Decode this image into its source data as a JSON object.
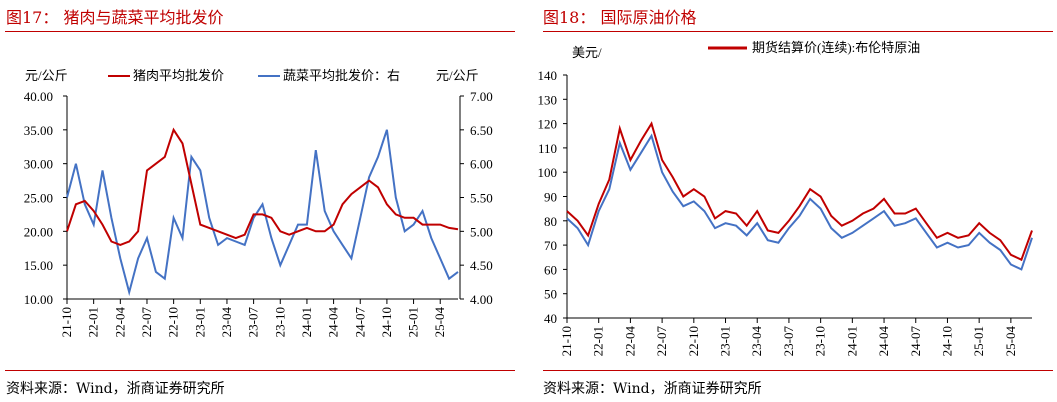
{
  "left": {
    "title": "图17： 猪肉与蔬菜平均批发价",
    "source": "资料来源：Wind，浙商证券研究所"
  },
  "right": {
    "title": "图18： 国际原油价格",
    "source": "资料来源：Wind，浙商证券研究所"
  },
  "chart_data": [
    {
      "type": "line",
      "yunit_left": "元/公斤",
      "yunit_right": "元/公斤",
      "ylim_left": [
        10,
        40
      ],
      "ylim_right": [
        4,
        7
      ],
      "yticks_left": [
        "10.00",
        "15.00",
        "20.00",
        "25.00",
        "30.00",
        "35.00",
        "40.00"
      ],
      "yticks_right": [
        "4.00",
        "4.50",
        "5.00",
        "5.50",
        "6.00",
        "6.50",
        "7.00"
      ],
      "xticks": [
        "21-10",
        "22-01",
        "22-04",
        "22-07",
        "22-10",
        "23-01",
        "23-04",
        "23-07",
        "23-10",
        "24-01",
        "24-04",
        "24-07",
        "24-10",
        "25-01",
        "25-04"
      ],
      "legend": "top",
      "x": [
        "21-10",
        "21-11",
        "21-12",
        "22-01",
        "22-02",
        "22-03",
        "22-04",
        "22-05",
        "22-06",
        "22-07",
        "22-08",
        "22-09",
        "22-10",
        "22-11",
        "22-12",
        "23-01",
        "23-02",
        "23-03",
        "23-04",
        "23-05",
        "23-06",
        "23-07",
        "23-08",
        "23-09",
        "23-10",
        "23-11",
        "23-12",
        "24-01",
        "24-02",
        "24-03",
        "24-04",
        "24-05",
        "24-06",
        "24-07",
        "24-08",
        "24-09",
        "24-10",
        "24-11",
        "24-12",
        "25-01",
        "25-02",
        "25-03",
        "25-04",
        "25-05",
        "25-06"
      ],
      "series": [
        {
          "name": "猪肉平均批发价",
          "axis": "left",
          "color": "#c00000",
          "values": [
            20,
            24,
            24.5,
            23,
            21,
            18.5,
            18,
            18.5,
            20,
            29,
            30,
            31,
            35,
            33,
            27,
            21,
            20.5,
            20,
            19.5,
            19,
            19.5,
            22.5,
            22.5,
            22,
            20,
            19.5,
            20,
            20.5,
            20,
            20,
            21,
            24,
            25.5,
            26.5,
            27.5,
            26.5,
            24,
            22.5,
            22,
            22,
            21,
            21,
            21,
            20.5,
            20.3
          ]
        },
        {
          "name": "蔬菜平均批发价：右",
          "axis": "right",
          "color": "#4472c4",
          "values": [
            5.5,
            6.0,
            5.4,
            5.1,
            5.9,
            5.2,
            4.6,
            4.1,
            4.6,
            4.9,
            4.4,
            4.3,
            5.2,
            4.9,
            6.1,
            5.9,
            5.2,
            4.8,
            4.9,
            4.85,
            4.8,
            5.2,
            5.4,
            4.9,
            4.5,
            4.8,
            5.1,
            5.1,
            6.2,
            5.3,
            5.0,
            4.8,
            4.6,
            5.2,
            5.8,
            6.1,
            6.5,
            5.5,
            5.0,
            5.1,
            5.3,
            4.9,
            4.6,
            4.3,
            4.4
          ]
        }
      ]
    },
    {
      "type": "line",
      "yunit": "美元/",
      "ylim": [
        40,
        140
      ],
      "yticks": [
        "40",
        "50",
        "60",
        "70",
        "80",
        "90",
        "100",
        "110",
        "120",
        "130",
        "140"
      ],
      "xticks": [
        "21-10",
        "22-01",
        "22-04",
        "22-07",
        "22-10",
        "23-01",
        "23-04",
        "23-07",
        "23-10",
        "24-01",
        "24-04",
        "24-07",
        "24-10",
        "25-01",
        "25-04"
      ],
      "legend": "top",
      "x": [
        "21-10",
        "21-11",
        "21-12",
        "22-01",
        "22-02",
        "22-03",
        "22-04",
        "22-05",
        "22-06",
        "22-07",
        "22-08",
        "22-09",
        "22-10",
        "22-11",
        "22-12",
        "23-01",
        "23-02",
        "23-03",
        "23-04",
        "23-05",
        "23-06",
        "23-07",
        "23-08",
        "23-09",
        "23-10",
        "23-11",
        "23-12",
        "24-01",
        "24-02",
        "24-03",
        "24-04",
        "24-05",
        "24-06",
        "24-07",
        "24-08",
        "24-09",
        "24-10",
        "24-11",
        "24-12",
        "25-01",
        "25-02",
        "25-03",
        "25-04",
        "25-05",
        "25-06"
      ],
      "series": [
        {
          "name": "期货结算价(连续):布伦特原油",
          "color": "#c00000",
          "values": [
            84,
            80,
            74,
            87,
            97,
            118,
            105,
            113,
            120,
            105,
            98,
            90,
            93,
            90,
            81,
            84,
            83,
            78,
            84,
            76,
            75,
            80,
            86,
            93,
            90,
            82,
            78,
            80,
            83,
            85,
            89,
            83,
            83,
            85,
            79,
            73,
            75,
            73,
            74,
            79,
            75,
            72,
            66,
            64,
            76
          ]
        },
        {
          "color": "#4472c4",
          "values": [
            81,
            77,
            70,
            84,
            93,
            112,
            101,
            108,
            115,
            100,
            92,
            86,
            88,
            84,
            77,
            79,
            78,
            74,
            79,
            72,
            71,
            77,
            82,
            89,
            85,
            77,
            73,
            75,
            78,
            81,
            84,
            78,
            79,
            81,
            75,
            69,
            71,
            69,
            70,
            75,
            71,
            68,
            62,
            60,
            73
          ]
        }
      ]
    }
  ]
}
